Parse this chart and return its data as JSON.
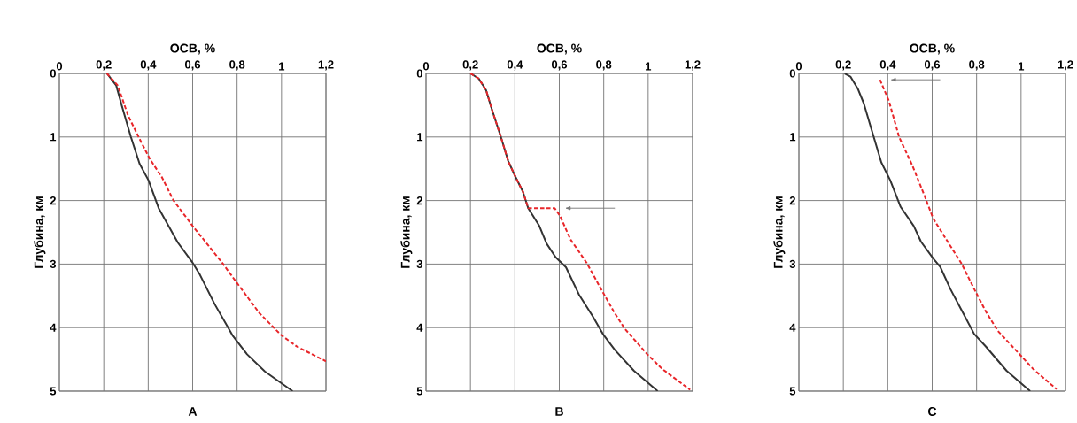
{
  "chart_data": [
    {
      "type": "line",
      "xlabel": "ОСВ, %",
      "ylabel": "Глубина, км",
      "annotations": [
        "А"
      ],
      "grid": true,
      "marker": "none",
      "xlim": [
        0,
        1.2
      ],
      "ylim": [
        5,
        0
      ],
      "xticks": [
        0,
        {
          "value": 0.2,
          "label": "0,2"
        },
        {
          "value": 0.4,
          "label": "0,4"
        },
        {
          "value": 0.6,
          "label": "0,6"
        },
        {
          "value": 0.8,
          "label": "0,8"
        },
        1,
        {
          "value": 1.2,
          "label": "1,2"
        }
      ],
      "yticks": [
        0,
        1,
        2,
        3,
        4,
        5
      ],
      "series": [
        {
          "color": "#333333",
          "line_style": "solid",
          "x": [
            0.214,
            0.256,
            0.282,
            0.322,
            0.361,
            0.401,
            0.447,
            0.533,
            0.6,
            0.633,
            0.699,
            0.779,
            0.845,
            0.925,
            1.05
          ],
          "values": [
            0,
            0.19,
            0.52,
            1.0,
            1.42,
            1.68,
            2.12,
            2.66,
            2.98,
            3.17,
            3.63,
            4.12,
            4.42,
            4.69,
            5.0
          ]
        },
        {
          "color": "#e8262a",
          "line_style": "dashed",
          "x": [
            0.214,
            0.263,
            0.309,
            0.361,
            0.408,
            0.461,
            0.514,
            0.6,
            0.733,
            0.8,
            0.9,
            0.999,
            1.07,
            1.2
          ],
          "values": [
            0,
            0.19,
            0.66,
            1.03,
            1.35,
            1.63,
            2.0,
            2.4,
            2.98,
            3.3,
            3.77,
            4.12,
            4.3,
            4.53
          ]
        }
      ]
    },
    {
      "type": "line",
      "xlabel": "ОСВ, %",
      "ylabel": "Глубина, км",
      "annotations": [
        "В"
      ],
      "grid": true,
      "marker": "none",
      "xlim": [
        0,
        1.2
      ],
      "ylim": [
        5,
        0
      ],
      "xticks": [
        0,
        {
          "value": 0.2,
          "label": "0,2"
        },
        {
          "value": 0.4,
          "label": "0,4"
        },
        {
          "value": 0.6,
          "label": "0,6"
        },
        {
          "value": 0.8,
          "label": "0,8"
        },
        1,
        {
          "value": 1.2,
          "label": "1,2"
        }
      ],
      "yticks": [
        0,
        1,
        2,
        3,
        4,
        5
      ],
      "series": [
        {
          "color": "#333333",
          "line_style": "solid",
          "x": [
            0.2,
            0.237,
            0.27,
            0.297,
            0.337,
            0.37,
            0.403,
            0.436,
            0.46,
            0.51,
            0.543,
            0.583,
            0.63,
            0.69,
            0.75,
            0.796,
            0.85,
            0.936,
            1.043
          ],
          "values": [
            0,
            0.08,
            0.26,
            0.57,
            1.0,
            1.38,
            1.63,
            1.86,
            2.12,
            2.4,
            2.68,
            2.89,
            3.05,
            3.49,
            3.82,
            4.1,
            4.35,
            4.68,
            5.0
          ]
        },
        {
          "color": "#e8262a",
          "line_style": "dashed",
          "x": [
            0.2,
            0.237,
            0.27,
            0.297,
            0.337,
            0.37,
            0.403,
            0.436,
            0.46,
            0.579,
            0.603,
            0.65,
            0.723,
            0.789,
            0.849,
            0.895,
            0.996,
            1.063,
            1.189
          ],
          "values": [
            0,
            0.08,
            0.26,
            0.57,
            1.0,
            1.38,
            1.63,
            1.86,
            2.12,
            2.12,
            2.24,
            2.61,
            2.98,
            3.4,
            3.77,
            4.02,
            4.42,
            4.65,
            4.98
          ]
        }
      ]
    },
    {
      "type": "line",
      "xlabel": "ОСВ, %",
      "ylabel": "Глубина, км",
      "annotations": [
        "С"
      ],
      "grid": true,
      "marker": "none",
      "xlim": [
        0,
        1.2
      ],
      "ylim": [
        5,
        0
      ],
      "xticks": [
        0,
        {
          "value": 0.2,
          "label": "0,2"
        },
        {
          "value": 0.4,
          "label": "0,4"
        },
        {
          "value": 0.6,
          "label": "0,6"
        },
        {
          "value": 0.8,
          "label": "0,8"
        },
        1,
        {
          "value": 1.2,
          "label": "1,2"
        }
      ],
      "yticks": [
        0,
        1,
        2,
        3,
        4,
        5
      ],
      "series": [
        {
          "color": "#333333",
          "line_style": "solid",
          "x": [
            0.206,
            0.232,
            0.265,
            0.292,
            0.325,
            0.371,
            0.411,
            0.458,
            0.517,
            0.55,
            0.604,
            0.637,
            0.683,
            0.736,
            0.789,
            0.842,
            0.935,
            1.041
          ],
          "values": [
            0,
            0.05,
            0.24,
            0.47,
            0.86,
            1.4,
            1.68,
            2.1,
            2.4,
            2.65,
            2.91,
            3.05,
            3.4,
            3.75,
            4.1,
            4.3,
            4.68,
            5.0
          ]
        },
        {
          "color": "#e8262a",
          "line_style": "dashed",
          "x": [
            0.365,
            0.405,
            0.451,
            0.511,
            0.564,
            0.604,
            0.663,
            0.73,
            0.796,
            0.842,
            0.895,
            0.975,
            1.054,
            1.16
          ],
          "values": [
            0.1,
            0.43,
            1.0,
            1.45,
            1.91,
            2.28,
            2.61,
            2.98,
            3.44,
            3.75,
            4.05,
            4.35,
            4.65,
            4.97
          ]
        }
      ]
    }
  ]
}
